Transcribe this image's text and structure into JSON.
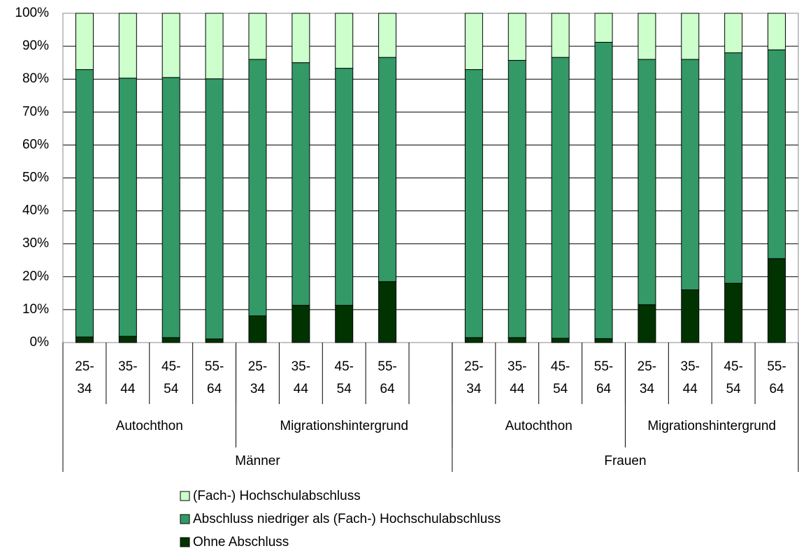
{
  "chart_data": {
    "type": "stacked_bar",
    "groups": [
      {
        "name": "Männer",
        "subgroups": [
          {
            "name": "Autochthon",
            "categories": [
              [
                "25-",
                "34"
              ],
              [
                "35-",
                "44"
              ],
              [
                "45-",
                "54"
              ],
              [
                "55-",
                "64"
              ]
            ]
          },
          {
            "name": "Migrationshintergrund",
            "categories": [
              [
                "25-",
                "34"
              ],
              [
                "35-",
                "44"
              ],
              [
                "45-",
                "54"
              ],
              [
                "55-",
                "64"
              ],
              null
            ]
          }
        ]
      },
      {
        "name": "Frauen",
        "subgroups": [
          {
            "name": "Autochthon",
            "categories": [
              [
                "25-",
                "34"
              ],
              [
                "35-",
                "44"
              ],
              [
                "45-",
                "54"
              ],
              [
                "55-",
                "64"
              ]
            ]
          },
          {
            "name": "Migrationshintergrund",
            "categories": [
              [
                "25-",
                "34"
              ],
              [
                "35-",
                "44"
              ],
              [
                "45-",
                "54"
              ],
              [
                "55-",
                "64"
              ]
            ]
          }
        ]
      }
    ],
    "series": [
      {
        "name": "Ohne Abschluss",
        "color": "#003300",
        "values": [
          1.7,
          1.9,
          1.5,
          1.1,
          8.1,
          11.3,
          11.3,
          18.5,
          null,
          1.5,
          1.5,
          1.3,
          1.2,
          11.5,
          16,
          18,
          25.5
        ]
      },
      {
        "name": "Abschluss niedriger als (Fach-) Hochschulabschluss",
        "color": "#339966",
        "values": [
          81.2,
          78.4,
          79.0,
          79.0,
          77.9,
          73.7,
          72.0,
          68.1,
          null,
          81.4,
          84.2,
          85.3,
          90.0,
          74.5,
          70,
          70,
          63.4
        ]
      },
      {
        "name": "(Fach-) Hochschulabschluss",
        "color": "#ccffcc",
        "values": [
          17.1,
          19.7,
          19.5,
          19.9,
          14,
          15,
          16.7,
          13.4,
          null,
          17.1,
          14.3,
          13.4,
          8.8,
          14,
          14,
          12,
          11.1
        ]
      }
    ],
    "ylim": [
      0,
      100
    ],
    "yticks": [
      {
        "value": 0,
        "label": "0%"
      },
      {
        "value": 10,
        "label": "10%"
      },
      {
        "value": 20,
        "label": "20%"
      },
      {
        "value": 30,
        "label": "30%"
      },
      {
        "value": 40,
        "label": "40%"
      },
      {
        "value": 50,
        "label": "50%"
      },
      {
        "value": 60,
        "label": "60%"
      },
      {
        "value": 70,
        "label": "70%"
      },
      {
        "value": 80,
        "label": "80%"
      },
      {
        "value": 90,
        "label": "90%"
      },
      {
        "value": 100,
        "label": "100%"
      }
    ],
    "grid": true
  }
}
